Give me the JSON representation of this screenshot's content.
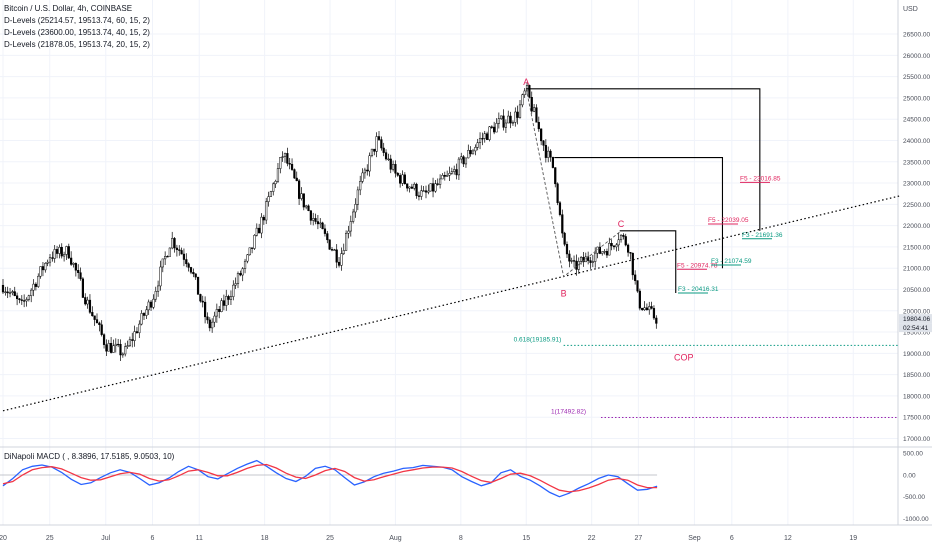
{
  "header": {
    "title": "Bitcoin / U.S. Dollar, 4h, COINBASE",
    "indicators": [
      "D-Levels (25214.57, 19513.74, 60, 15, 2)",
      "D-Levels (23600.00, 19513.74, 40, 15, 2)",
      "D-Levels (21878.05, 19513.74, 20, 15, 2)"
    ]
  },
  "colors": {
    "candle": "#000000",
    "fib_red": "#e0245e",
    "fib_green": "#089981",
    "trendline": "#000000",
    "macd": "#2962ff",
    "signal": "#f23645",
    "cop_line": "#089981",
    "purple_line": "#9c27b0",
    "grid": "#f0f3fa",
    "axis_text": "#4a4e59"
  },
  "chart_data": [
    {
      "type": "candlestick",
      "title": "Bitcoin / U.S. Dollar, 4h, COINBASE",
      "currency_label": "USD",
      "ylim": [
        16800,
        27300
      ],
      "ytick_labels": [
        "17000.00",
        "17500.00",
        "18000.00",
        "18500.00",
        "19000.00",
        "19500.00",
        "20000.00",
        "20500.00",
        "21000.00",
        "21500.00",
        "22000.00",
        "22500.00",
        "23000.00",
        "23500.00",
        "24000.00",
        "24500.00",
        "25000.00",
        "25500.00",
        "26000.00",
        "26500.00"
      ],
      "x_tick_labels": [
        "20",
        "25",
        "Jul",
        "6",
        "11",
        "18",
        "25",
        "Aug",
        "8",
        "15",
        "22",
        "27",
        "Sep",
        "6",
        "12",
        "19"
      ],
      "price_path": [
        {
          "date": "Jun 20",
          "price": 20600
        },
        {
          "date": "Jun 22",
          "price": 20100
        },
        {
          "date": "Jun 25",
          "price": 21300
        },
        {
          "date": "Jun 27",
          "price": 21400
        },
        {
          "date": "Jun 29",
          "price": 20200
        },
        {
          "date": "Jul 1",
          "price": 19200
        },
        {
          "date": "Jul 3",
          "price": 19000
        },
        {
          "date": "Jul 6",
          "price": 20300
        },
        {
          "date": "Jul 8",
          "price": 21700
        },
        {
          "date": "Jul 10",
          "price": 21100
        },
        {
          "date": "Jul 12",
          "price": 19600
        },
        {
          "date": "Jul 14",
          "price": 20300
        },
        {
          "date": "Jul 16",
          "price": 21100
        },
        {
          "date": "Jul 18",
          "price": 22300
        },
        {
          "date": "Jul 20",
          "price": 23700
        },
        {
          "date": "Jul 22",
          "price": 22600
        },
        {
          "date": "Jul 26",
          "price": 21200
        },
        {
          "date": "Jul 28",
          "price": 22800
        },
        {
          "date": "Jul 30",
          "price": 24000
        },
        {
          "date": "Aug 1",
          "price": 23200
        },
        {
          "date": "Aug 4",
          "price": 22700
        },
        {
          "date": "Aug 7",
          "price": 23200
        },
        {
          "date": "Aug 10",
          "price": 24000
        },
        {
          "date": "Aug 12",
          "price": 24400
        },
        {
          "date": "Aug 14",
          "price": 24600
        },
        {
          "date": "Aug 15",
          "price": 25200
        },
        {
          "date": "Aug 17",
          "price": 23800
        },
        {
          "date": "Aug 18",
          "price": 23300
        },
        {
          "date": "Aug 19",
          "price": 21500
        },
        {
          "date": "Aug 20",
          "price": 21000
        },
        {
          "date": "Aug 22",
          "price": 21300
        },
        {
          "date": "Aug 24",
          "price": 21500
        },
        {
          "date": "Aug 25",
          "price": 21800
        },
        {
          "date": "Aug 26",
          "price": 21500
        },
        {
          "date": "Aug 27",
          "price": 20200
        },
        {
          "date": "Aug 28",
          "price": 20000
        },
        {
          "date": "Aug 29",
          "price": 19800
        }
      ],
      "last_price_label": "19804.06",
      "countdown_label": "02:54:41",
      "swing_labels": [
        {
          "text": "A",
          "date": "Aug 15",
          "price": 25214.57
        },
        {
          "text": "B",
          "date": "Aug 19",
          "price": 20800
        },
        {
          "text": "C",
          "date": "Aug 25",
          "price": 21850
        }
      ],
      "dlevel_boxes": [
        {
          "start": "Aug 15",
          "end": "Sep 9",
          "top": 25214.57,
          "bottom": 21878
        },
        {
          "start": "Aug 18",
          "end": "Sep 5",
          "top": 23600.0,
          "bottom": 21000
        },
        {
          "start": "Aug 25",
          "end": "Aug 31",
          "top": 21878.05,
          "bottom": 20416
        }
      ],
      "fib_labels": [
        {
          "text": "F5 - 23016.85",
          "color": "red",
          "price": 23016.85
        },
        {
          "text": "F5 - 22039.05",
          "color": "red",
          "price": 22039.05
        },
        {
          "text": "F5 - 20974.78",
          "color": "red",
          "price": 20974.78
        },
        {
          "text": "F3 - 21691.36",
          "color": "green",
          "price": 21691.36
        },
        {
          "text": "F3 - 21074.59",
          "color": "green",
          "price": 21074.59
        },
        {
          "text": "F3 - 20416.31",
          "color": "green",
          "price": 20416.31
        }
      ],
      "trendline": {
        "start": {
          "date": "Jun 20",
          "price": 17650
        },
        "end": {
          "date": "Sep 24",
          "price": 22700
        }
      },
      "ext_lines": [
        {
          "label": "0.618(19185.91)",
          "price": 19185.91,
          "start": "Aug 19",
          "color": "green"
        },
        {
          "label": "1(17492.82)",
          "price": 17492.82,
          "start": "Aug 23",
          "color": "purple"
        }
      ],
      "cop_label": "COP"
    },
    {
      "type": "line",
      "title": "DiNapoli MACD ( , 8.3896, 17.5185, 9.0503, 10)",
      "ytick_labels": [
        "500.00",
        "0.00",
        "-500.00",
        "-1000.00"
      ],
      "ylim": [
        -1150,
        620
      ],
      "series": [
        {
          "name": "MACD",
          "values": [
            -250,
            -80,
            120,
            200,
            230,
            180,
            60,
            -100,
            -220,
            -180,
            -60,
            50,
            120,
            60,
            -80,
            -230,
            -180,
            -70,
            80,
            200,
            120,
            -40,
            -90,
            30,
            150,
            250,
            330,
            200,
            50,
            -80,
            -150,
            -30,
            150,
            200,
            120,
            -60,
            -230,
            -160,
            -40,
            40,
            90,
            150,
            170,
            220,
            200,
            180,
            120,
            -40,
            -150,
            -250,
            -180,
            50,
            120,
            -30,
            -120,
            -250,
            -400,
            -500,
            -420,
            -300,
            -200,
            -80,
            0,
            -40,
            -200,
            -350,
            -330,
            -260
          ]
        },
        {
          "name": "Signal",
          "values": [
            -200,
            -150,
            0,
            120,
            170,
            190,
            140,
            40,
            -60,
            -120,
            -110,
            -40,
            30,
            60,
            20,
            -80,
            -140,
            -110,
            -20,
            90,
            120,
            60,
            -20,
            -20,
            60,
            150,
            220,
            240,
            160,
            40,
            -50,
            -80,
            0,
            100,
            150,
            80,
            -60,
            -140,
            -110,
            -40,
            20,
            80,
            120,
            160,
            180,
            180,
            160,
            80,
            -30,
            -130,
            -170,
            -80,
            20,
            40,
            -20,
            -120,
            -240,
            -350,
            -390,
            -360,
            -300,
            -220,
            -120,
            -80,
            -120,
            -230,
            -290,
            -290
          ]
        }
      ]
    }
  ]
}
